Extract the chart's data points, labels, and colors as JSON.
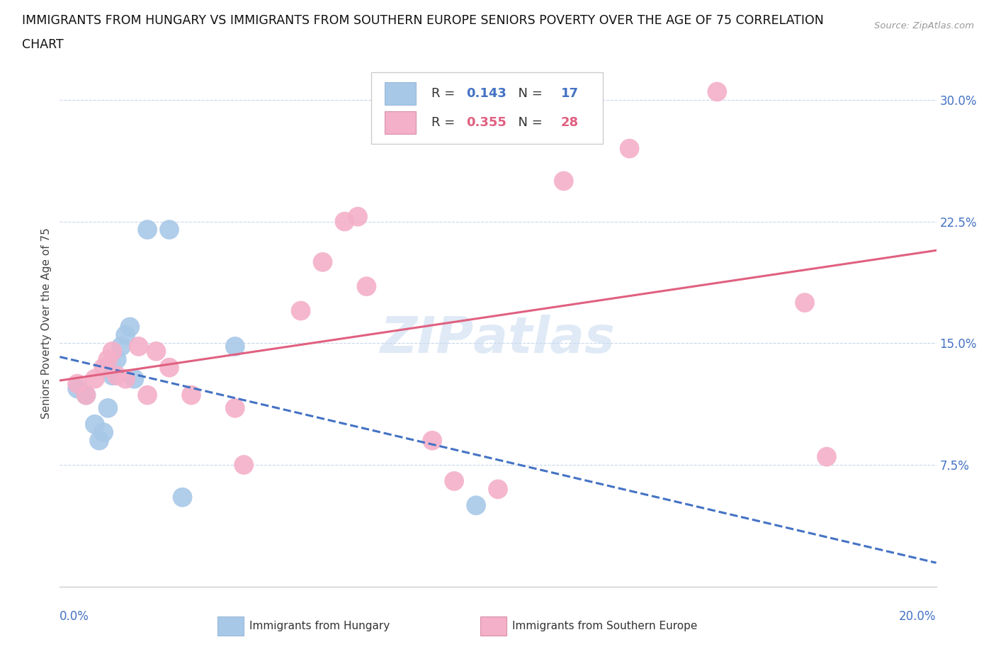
{
  "title_line1": "IMMIGRANTS FROM HUNGARY VS IMMIGRANTS FROM SOUTHERN EUROPE SENIORS POVERTY OVER THE AGE OF 75 CORRELATION",
  "title_line2": "CHART",
  "source": "Source: ZipAtlas.com",
  "ylabel": "Seniors Poverty Over the Age of 75",
  "ytick_labels": [
    "7.5%",
    "15.0%",
    "22.5%",
    "30.0%"
  ],
  "ytick_values": [
    0.075,
    0.15,
    0.225,
    0.3
  ],
  "xlim": [
    0.0,
    0.2
  ],
  "ylim": [
    0.0,
    0.325
  ],
  "legend_hungary_R": "0.143",
  "legend_hungary_N": "17",
  "legend_southern_R": "0.355",
  "legend_southern_N": "28",
  "hungary_color": "#a8c8e8",
  "southern_color": "#f4b0c8",
  "hungary_line_color": "#4472c4",
  "southern_line_color": "#e06080",
  "hungary_x": [
    0.004,
    0.006,
    0.008,
    0.009,
    0.01,
    0.011,
    0.012,
    0.013,
    0.014,
    0.015,
    0.016,
    0.017,
    0.02,
    0.025,
    0.028,
    0.04,
    0.095
  ],
  "hungary_y": [
    0.122,
    0.118,
    0.1,
    0.09,
    0.095,
    0.11,
    0.13,
    0.14,
    0.148,
    0.155,
    0.16,
    0.128,
    0.22,
    0.22,
    0.055,
    0.148,
    0.05
  ],
  "southern_x": [
    0.004,
    0.006,
    0.008,
    0.01,
    0.011,
    0.012,
    0.013,
    0.015,
    0.018,
    0.02,
    0.022,
    0.025,
    0.03,
    0.04,
    0.042,
    0.055,
    0.06,
    0.065,
    0.068,
    0.07,
    0.085,
    0.09,
    0.1,
    0.115,
    0.13,
    0.15,
    0.17,
    0.175
  ],
  "southern_y": [
    0.125,
    0.118,
    0.128,
    0.135,
    0.14,
    0.145,
    0.13,
    0.128,
    0.148,
    0.118,
    0.145,
    0.135,
    0.118,
    0.11,
    0.075,
    0.17,
    0.2,
    0.225,
    0.228,
    0.185,
    0.09,
    0.065,
    0.06,
    0.25,
    0.27,
    0.305,
    0.175,
    0.08
  ]
}
